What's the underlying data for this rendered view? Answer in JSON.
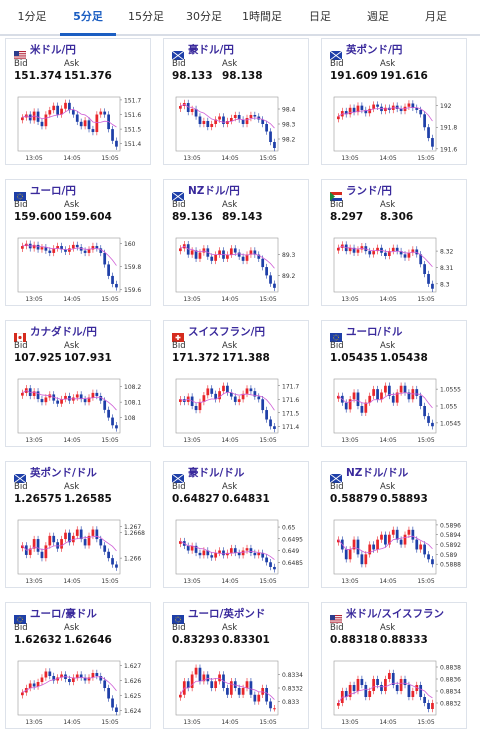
{
  "tabs": [
    "1分足",
    "5分足",
    "15分足",
    "30分足",
    "1時間足",
    "日足",
    "週足",
    "月足"
  ],
  "active_tab": 1,
  "bid_label": "Bid",
  "ask_label": "Ask",
  "time_labels": [
    "13:05",
    "14:05",
    "15:05"
  ],
  "colors": {
    "up": "#e8262b",
    "down": "#1e3fa8",
    "ma": "#cf5ed6",
    "accent": "#1b5ec2"
  },
  "pairs": [
    {
      "name": "米ドル/円",
      "flag": "us-jp",
      "bid": "151.374",
      "ask": "151.376",
      "chart_data": {
        "type": "candlestick",
        "y_ticks": [
          "151.7",
          "151.6",
          "151.5",
          "151.4"
        ],
        "ylim": [
          151.35,
          151.72
        ],
        "close": [
          151.58,
          151.6,
          151.56,
          151.62,
          151.55,
          151.52,
          151.6,
          151.63,
          151.66,
          151.6,
          151.64,
          151.68,
          151.63,
          151.6,
          151.55,
          151.52,
          151.56,
          151.5,
          151.48,
          151.6,
          151.62,
          151.6,
          151.5,
          151.42,
          151.38
        ]
      }
    },
    {
      "name": "豪ドル/円",
      "flag": "au-jp",
      "bid": "98.133",
      "ask": "98.138",
      "chart_data": {
        "type": "candlestick",
        "y_ticks": [
          "98.4",
          "98.3",
          "98.2"
        ],
        "ylim": [
          98.12,
          98.48
        ],
        "close": [
          98.42,
          98.44,
          98.38,
          98.4,
          98.35,
          98.3,
          98.32,
          98.28,
          98.3,
          98.33,
          98.35,
          98.3,
          98.32,
          98.34,
          98.36,
          98.33,
          98.3,
          98.34,
          98.36,
          98.35,
          98.33,
          98.3,
          98.25,
          98.18,
          98.14
        ]
      }
    },
    {
      "name": "英ポンド/円",
      "flag": "gb-jp",
      "bid": "191.609",
      "ask": "191.616",
      "chart_data": {
        "type": "candlestick",
        "y_ticks": [
          "192",
          "191.8",
          "191.6"
        ],
        "ylim": [
          191.58,
          192.08
        ],
        "close": [
          191.9,
          191.95,
          191.92,
          191.98,
          191.94,
          192.0,
          191.96,
          191.93,
          191.97,
          192.01,
          191.99,
          191.95,
          191.98,
          191.96,
          192.0,
          191.97,
          191.95,
          191.99,
          192.02,
          191.98,
          191.96,
          191.92,
          191.8,
          191.7,
          191.62
        ]
      }
    },
    {
      "name": "ユーロ/円",
      "flag": "eu-jp",
      "bid": "159.600",
      "ask": "159.604",
      "chart_data": {
        "type": "candlestick",
        "y_ticks": [
          "160",
          "159.8",
          "159.6"
        ],
        "ylim": [
          159.58,
          160.05
        ],
        "close": [
          159.98,
          160.0,
          159.96,
          159.99,
          159.95,
          159.97,
          159.94,
          159.92,
          159.96,
          159.98,
          159.95,
          159.93,
          159.96,
          159.99,
          159.97,
          159.94,
          159.92,
          159.95,
          159.98,
          159.96,
          159.92,
          159.82,
          159.72,
          159.65,
          159.62
        ]
      }
    },
    {
      "name": "NZドル/円",
      "flag": "nz-jp",
      "bid": "89.136",
      "ask": "89.143",
      "chart_data": {
        "type": "candlestick",
        "y_ticks": [
          "89.3",
          "89.2"
        ],
        "ylim": [
          89.12,
          89.38
        ],
        "close": [
          89.33,
          89.35,
          89.3,
          89.32,
          89.28,
          89.31,
          89.33,
          89.29,
          89.27,
          89.3,
          89.32,
          89.28,
          89.3,
          89.33,
          89.31,
          89.29,
          89.27,
          89.3,
          89.32,
          89.3,
          89.28,
          89.24,
          89.2,
          89.16,
          89.14
        ]
      }
    },
    {
      "name": "ランド/円",
      "flag": "za-jp",
      "bid": "8.297",
      "ask": "8.306",
      "chart_data": {
        "type": "candlestick",
        "y_ticks": [
          "8.32",
          "8.31",
          "8.3"
        ],
        "ylim": [
          8.295,
          8.328
        ],
        "close": [
          8.322,
          8.324,
          8.32,
          8.322,
          8.319,
          8.321,
          8.323,
          8.32,
          8.318,
          8.32,
          8.322,
          8.319,
          8.317,
          8.32,
          8.322,
          8.32,
          8.318,
          8.316,
          8.319,
          8.321,
          8.318,
          8.312,
          8.306,
          8.3,
          8.297
        ]
      }
    },
    {
      "name": "カナダドル/円",
      "flag": "ca-jp",
      "bid": "107.925",
      "ask": "107.931",
      "chart_data": {
        "type": "candlestick",
        "y_ticks": [
          "108.2",
          "108.1",
          "108"
        ],
        "ylim": [
          107.9,
          108.25
        ],
        "close": [
          108.16,
          108.19,
          108.14,
          108.17,
          108.12,
          108.1,
          108.13,
          108.15,
          108.11,
          108.09,
          108.12,
          108.14,
          108.11,
          108.13,
          108.15,
          108.12,
          108.1,
          108.13,
          108.16,
          108.14,
          108.11,
          108.05,
          108.0,
          107.95,
          107.93
        ]
      }
    },
    {
      "name": "スイスフラン/円",
      "flag": "ch-jp",
      "bid": "171.372",
      "ask": "171.388",
      "chart_data": {
        "type": "candlestick",
        "y_ticks": [
          "171.7",
          "171.6",
          "171.5",
          "171.4"
        ],
        "ylim": [
          171.35,
          171.75
        ],
        "close": [
          171.6,
          171.58,
          171.62,
          171.55,
          171.52,
          171.58,
          171.63,
          171.68,
          171.64,
          171.6,
          171.66,
          171.7,
          171.65,
          171.62,
          171.58,
          171.6,
          171.64,
          171.68,
          171.66,
          171.62,
          171.6,
          171.52,
          171.45,
          171.4,
          171.38
        ]
      }
    },
    {
      "name": "ユーロ/ドル",
      "flag": "eu-us",
      "bid": "1.05435",
      "ask": "1.05438",
      "chart_data": {
        "type": "candlestick",
        "y_ticks": [
          "1.0555",
          "1.055",
          "1.0545"
        ],
        "ylim": [
          1.0542,
          1.0558
        ],
        "close": [
          1.0553,
          1.0551,
          1.0549,
          1.0552,
          1.0554,
          1.055,
          1.0548,
          1.0551,
          1.0553,
          1.0555,
          1.0552,
          1.0554,
          1.0556,
          1.0553,
          1.0551,
          1.0554,
          1.0556,
          1.0554,
          1.0552,
          1.0555,
          1.0553,
          1.055,
          1.0547,
          1.0545,
          1.0544
        ]
      }
    },
    {
      "name": "英ポンド/ドル",
      "flag": "gb-us",
      "bid": "1.26575",
      "ask": "1.26585",
      "chart_data": {
        "type": "candlestick",
        "y_ticks": [
          "1.267",
          "1.2668",
          "1.266"
        ],
        "ylim": [
          1.2655,
          1.2672
        ],
        "close": [
          1.2664,
          1.2661,
          1.2663,
          1.2666,
          1.2662,
          1.266,
          1.2664,
          1.2667,
          1.2665,
          1.2663,
          1.2666,
          1.2668,
          1.2665,
          1.2667,
          1.2669,
          1.2666,
          1.2664,
          1.2667,
          1.2669,
          1.2666,
          1.2664,
          1.2662,
          1.266,
          1.2658,
          1.2657
        ]
      }
    },
    {
      "name": "豪ドル/ドル",
      "flag": "au-us",
      "bid": "0.64827",
      "ask": "0.64831",
      "chart_data": {
        "type": "candlestick",
        "y_ticks": [
          "0.65",
          "0.6495",
          "0.649",
          "0.6485"
        ],
        "ylim": [
          0.648,
          0.6503
        ],
        "close": [
          0.6494,
          0.6492,
          0.649,
          0.6492,
          0.6489,
          0.6488,
          0.649,
          0.6488,
          0.6487,
          0.6489,
          0.649,
          0.6488,
          0.6489,
          0.6491,
          0.6489,
          0.6488,
          0.649,
          0.6491,
          0.6489,
          0.6488,
          0.6489,
          0.6487,
          0.6485,
          0.6483,
          0.6482
        ]
      }
    },
    {
      "name": "NZドル/ドル",
      "flag": "nz-us",
      "bid": "0.58879",
      "ask": "0.58893",
      "chart_data": {
        "type": "candlestick",
        "y_ticks": [
          "0.5896",
          "0.5894",
          "0.5892",
          "0.589",
          "0.5888"
        ],
        "ylim": [
          0.5886,
          0.5897
        ],
        "close": [
          0.5893,
          0.5891,
          0.5889,
          0.5891,
          0.5893,
          0.589,
          0.5888,
          0.589,
          0.5892,
          0.5891,
          0.5893,
          0.5894,
          0.5892,
          0.5894,
          0.5895,
          0.5893,
          0.5892,
          0.5894,
          0.5895,
          0.5893,
          0.5891,
          0.5892,
          0.589,
          0.5889,
          0.5888
        ]
      }
    },
    {
      "name": "ユーロ/豪ドル",
      "flag": "eu-au",
      "bid": "1.62632",
      "ask": "1.62646",
      "chart_data": {
        "type": "candlestick",
        "y_ticks": [
          "1.627",
          "1.626",
          "1.625",
          "1.624"
        ],
        "ylim": [
          1.6237,
          1.6273
        ],
        "close": [
          1.6252,
          1.6255,
          1.6258,
          1.6256,
          1.6259,
          1.6262,
          1.6266,
          1.6263,
          1.626,
          1.6262,
          1.6264,
          1.6261,
          1.6259,
          1.6262,
          1.6264,
          1.6262,
          1.626,
          1.6262,
          1.6265,
          1.6263,
          1.626,
          1.6255,
          1.6248,
          1.6242,
          1.6239
        ]
      }
    },
    {
      "name": "ユーロ/英ポンド",
      "flag": "eu-gb",
      "bid": "0.83293",
      "ask": "0.83301",
      "chart_data": {
        "type": "candlestick",
        "y_ticks": [
          "0.8334",
          "0.8332",
          "0.833"
        ],
        "ylim": [
          0.8328,
          0.8336
        ],
        "close": [
          0.8331,
          0.8333,
          0.8332,
          0.8334,
          0.8335,
          0.8333,
          0.8334,
          0.8333,
          0.8332,
          0.8333,
          0.8334,
          0.8332,
          0.8331,
          0.8333,
          0.8332,
          0.8331,
          0.8332,
          0.8333,
          0.8331,
          0.833,
          0.8331,
          0.8332,
          0.833,
          0.8329,
          0.8329
        ]
      }
    },
    {
      "name": "米ドル/スイスフラン",
      "flag": "us-ch",
      "bid": "0.88318",
      "ask": "0.88333",
      "chart_data": {
        "type": "candlestick",
        "y_ticks": [
          "0.8838",
          "0.8836",
          "0.8834",
          "0.8832"
        ],
        "ylim": [
          0.883,
          0.8839
        ],
        "close": [
          0.8832,
          0.8834,
          0.8833,
          0.8835,
          0.8834,
          0.8836,
          0.8835,
          0.8833,
          0.8834,
          0.8836,
          0.8835,
          0.8834,
          0.8836,
          0.8837,
          0.8835,
          0.8834,
          0.8836,
          0.8835,
          0.8833,
          0.8834,
          0.8835,
          0.8833,
          0.8832,
          0.8831,
          0.8832
        ]
      }
    }
  ]
}
